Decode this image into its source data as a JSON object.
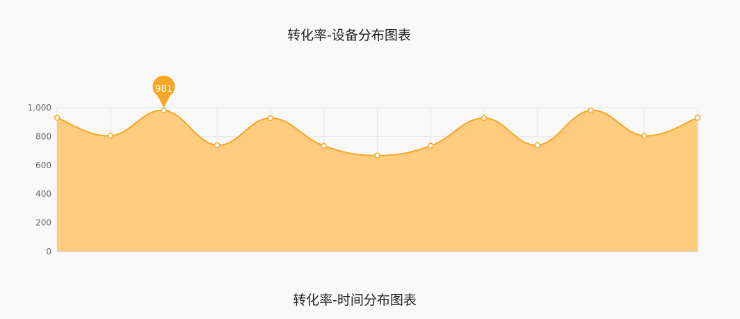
{
  "titles": {
    "device_chart": "转化率-设备分布图表",
    "time_chart": "转化率-时间分布图表"
  },
  "chart_data": {
    "type": "area",
    "smooth": true,
    "x_count": 13,
    "values": [
      930,
      805,
      981,
      740,
      928,
      735,
      668,
      735,
      928,
      740,
      981,
      805,
      930
    ],
    "ylim": [
      0,
      1000
    ],
    "yticks": [
      0,
      200,
      400,
      600,
      800,
      1000
    ],
    "ytick_labels": [
      "0",
      "200",
      "400",
      "600",
      "800",
      "1,000"
    ],
    "grid": true,
    "markpoint": {
      "index": 2,
      "label": "981"
    },
    "colors": {
      "line": "#f5a623",
      "fill": "#ffc878",
      "marker_fill": "#ffffff",
      "markpoint": "#f5a623",
      "grid": "#e6e6e6",
      "axis": "#cccccc"
    }
  }
}
